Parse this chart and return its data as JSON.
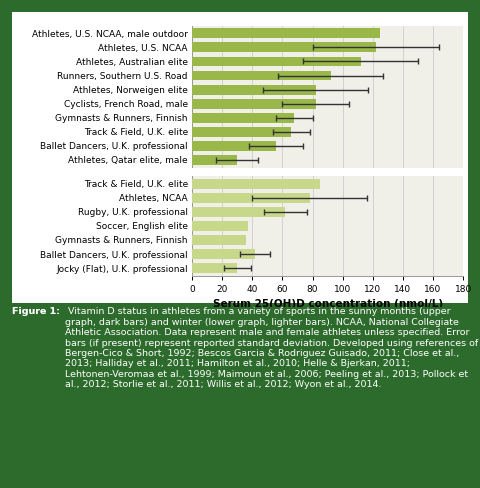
{
  "background_color": "#2d6b2d",
  "chart_bg": "#ffffff",
  "plot_bg": "#f0f0e8",
  "dark_bar_color": "#9ab84a",
  "light_bar_color": "#c8d88a",
  "upper_labels": [
    "Athletes, U.S. NCAA, male outdoor",
    "Athletes, U.S. NCAA",
    "Athletes, Australian elite",
    "Runners, Southern U.S. Road",
    "Athletes, Norweigen elite",
    "Cyclists, French Road, male",
    "Gymnasts & Runners, Finnish",
    "Track & Field, U.K. elite",
    "Ballet Dancers, U.K. professional",
    "Athletes, Qatar elite, male"
  ],
  "upper_values": [
    125,
    122,
    112,
    92,
    82,
    82,
    68,
    66,
    56,
    30
  ],
  "upper_errors": [
    0,
    42,
    38,
    35,
    35,
    22,
    12,
    12,
    18,
    14
  ],
  "lower_labels": [
    "Track & Field, U.K. elite",
    "Athletes, NCAA",
    "Rugby, U.K. professional",
    "Soccer, English elite",
    "Gymnasts & Runners, Finnish",
    "Ballet Dancers, U.K. professional",
    "Jocky (Flat), U.K. professional"
  ],
  "lower_values": [
    85,
    78,
    62,
    37,
    36,
    42,
    30
  ],
  "lower_errors": [
    0,
    38,
    14,
    0,
    0,
    10,
    9
  ],
  "xlabel": "Serum 25(OH)D concentration (nmol/L)",
  "xlim": [
    0,
    180
  ],
  "xticks": [
    0,
    20,
    40,
    60,
    80,
    100,
    120,
    140,
    160,
    180
  ],
  "figure_caption_bold": "Figure 1:",
  "figure_caption_rest": " Vitamin D status in athletes from a variety of sports in the sunny months (upper graph, dark bars) and winter (lower graph, lighter bars). NCAA, National Collegiate Athletic Association. Data represent male and female athletes unless specified. Error bars (if present) represent reported standard deviation. Developed using references of Bergen-Cico & Short, 1992; Bescos Garcia & Rodriguez Guisado, 2011; Close et al., 2013; Halliday et al., 2011; Hamilton et al., 2010; Helle & Bjerkan, 2011; Lehtonen-Veromaa et al., 1999; Maimoun et al., 2006; Peeling et al., 2013; Pollock et al., 2012; Storlie et al., 2011; Willis et al., 2012; Wyon et al., 2014.",
  "caption_fontsize": 6.8,
  "bar_height": 0.7,
  "label_fontsize": 6.5,
  "tick_fontsize": 6.5,
  "xlabel_fontsize": 7.5
}
